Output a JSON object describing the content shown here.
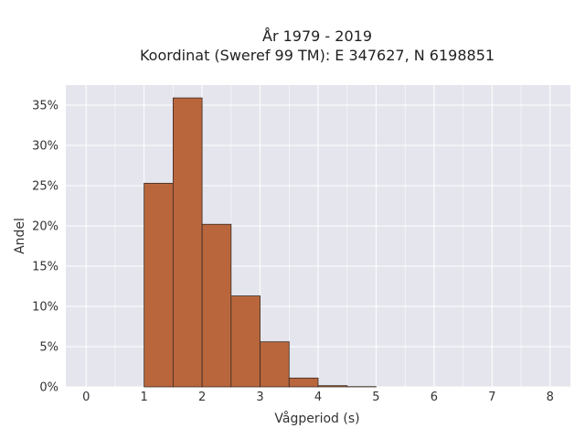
{
  "chart_data": {
    "type": "bar",
    "title_line1": "År 1979 - 2019",
    "title_line2": "Koordinat (Sweref 99 TM): E 347627, N 6198851",
    "xlabel": "Vågperiod (s)",
    "ylabel": "Andel",
    "xlim": [
      -0.35,
      8.35
    ],
    "ylim": [
      0,
      0.375
    ],
    "x_ticks": [
      0,
      1,
      2,
      3,
      4,
      5,
      6,
      7,
      8
    ],
    "y_ticks": [
      0,
      0.05,
      0.1,
      0.15,
      0.2,
      0.25,
      0.3,
      0.35
    ],
    "y_tick_labels": [
      "0%",
      "5%",
      "10%",
      "15%",
      "20%",
      "25%",
      "30%",
      "35%"
    ],
    "bin_edges": [
      1.0,
      1.5,
      2.0,
      2.5,
      3.0,
      3.5,
      4.0,
      4.5,
      5.0
    ],
    "values": [
      0.253,
      0.359,
      0.202,
      0.113,
      0.056,
      0.011,
      0.0015,
      0.0003
    ],
    "bar_color": "#b9663d",
    "bar_edge_color": "#3a2a20",
    "plot_bg": "#e5e5ee",
    "grid": true,
    "grid_color": "#ffffff"
  }
}
